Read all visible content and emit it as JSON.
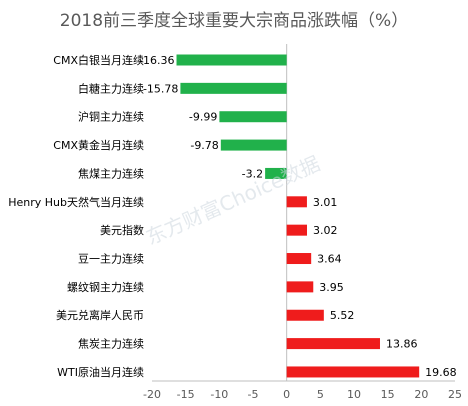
{
  "chart_data": {
    "type": "bar",
    "orientation": "horizontal",
    "title": "2018前三季度全球重要大宗商品涨跌幅（%）",
    "categories": [
      "CMX白银当月连续",
      "白糖主力连续",
      "沪铜主力连续",
      "CMX黄金当月连续",
      "焦煤主力连续",
      "Henry Hub天然气当月连续",
      "美元指数",
      "豆一主力连续",
      "螺纹钢主力连续",
      "美元兑离岸人民币",
      "焦炭主力连续",
      "WTI原油当月连续"
    ],
    "values": [
      -16.36,
      -15.78,
      -9.99,
      -9.78,
      -3.2,
      3.01,
      3.02,
      3.64,
      3.95,
      5.52,
      13.86,
      19.68
    ],
    "data_labels": [
      "-16.36",
      "-15.78",
      "-9.99",
      "-9.78",
      "-3.2",
      "3.01",
      "3.02",
      "3.64",
      "3.95",
      "5.52",
      "13.86",
      "19.68"
    ],
    "xlim": [
      -20,
      25
    ],
    "xticks": [
      "-20",
      "-15",
      "-10",
      "-5",
      "0",
      "5",
      "10",
      "15",
      "20",
      "25"
    ],
    "xtick_values": [
      -20,
      -15,
      -10,
      -5,
      0,
      5,
      10,
      15,
      20,
      25
    ],
    "colors": {
      "negative": "#21b14b",
      "positive": "#ef1c1c",
      "axis": "#bfbfbf"
    },
    "grid": false,
    "legend": "none",
    "watermark": "东方财富Choice数据"
  }
}
